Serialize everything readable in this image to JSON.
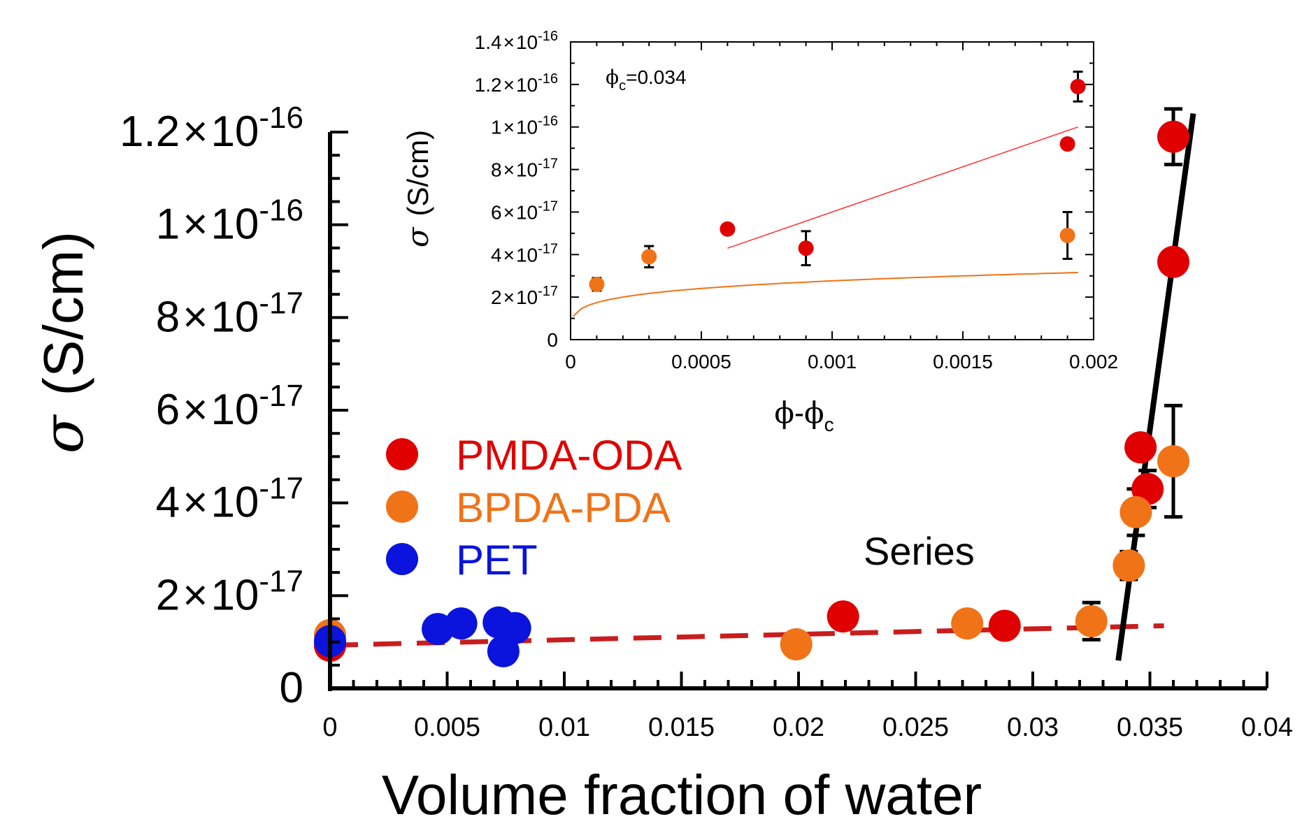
{
  "chart_data": [
    {
      "id": "main",
      "type": "scatter",
      "xlabel": "Volume fraction of water",
      "ylabel_symbol": "σ",
      "ylabel_unit": "(S/cm)",
      "xlim": [
        0,
        0.04
      ],
      "ylim": [
        0,
        1.2e-16
      ],
      "x_ticks": [
        {
          "value": 0,
          "label": "0"
        },
        {
          "value": 0.005,
          "label": "0.005"
        },
        {
          "value": 0.01,
          "label": "0.01"
        },
        {
          "value": 0.015,
          "label": "0.015"
        },
        {
          "value": 0.02,
          "label": "0.02"
        },
        {
          "value": 0.025,
          "label": "0.025"
        },
        {
          "value": 0.03,
          "label": "0.03"
        },
        {
          "value": 0.035,
          "label": "0.035"
        },
        {
          "value": 0.04,
          "label": "0.04"
        }
      ],
      "y_ticks": [
        {
          "value": 0,
          "label": "0"
        },
        {
          "value": 2e-17,
          "mantissa": "2",
          "exponent": "-17"
        },
        {
          "value": 4e-17,
          "mantissa": "4",
          "exponent": "-17"
        },
        {
          "value": 6e-17,
          "mantissa": "6",
          "exponent": "-17"
        },
        {
          "value": 8e-17,
          "mantissa": "8",
          "exponent": "-17"
        },
        {
          "value": 1e-16,
          "mantissa": "1",
          "exponent": "-16"
        },
        {
          "value": 1.2e-16,
          "mantissa": "1.2",
          "exponent": "-16"
        }
      ],
      "times_symbol": "×",
      "base": "10",
      "series": [
        {
          "name": "PMDA-ODA",
          "color": "#e00000",
          "points": [
            {
              "x": 0,
              "y": 9.2e-18
            },
            {
              "x": 0.0219,
              "y": 1.55e-17
            },
            {
              "x": 0.0288,
              "y": 1.35e-17
            },
            {
              "x": 0.0346,
              "y": 5.2e-17
            },
            {
              "x": 0.0349,
              "y": 4.3e-17,
              "err": 4e-18
            },
            {
              "x": 0.036,
              "y": 9.2e-17,
              "err": 2e-18
            },
            {
              "x": 0.036,
              "y": 1.19e-16,
              "err": 6e-18
            }
          ]
        },
        {
          "name": "BPDA-PDA",
          "color": "#f07318",
          "points": [
            {
              "x": 0,
              "y": 1.15e-17
            },
            {
              "x": 0.0199,
              "y": 9.5e-18
            },
            {
              "x": 0.0272,
              "y": 1.4e-17
            },
            {
              "x": 0.0325,
              "y": 1.45e-17,
              "err": 4e-18
            },
            {
              "x": 0.0341,
              "y": 2.65e-17,
              "err": 3e-18
            },
            {
              "x": 0.0344,
              "y": 3.8e-17,
              "err": 5e-18
            },
            {
              "x": 0.036,
              "y": 4.9e-17,
              "err": 1.2e-17
            }
          ]
        },
        {
          "name": "PET",
          "color": "#0a14dc",
          "points": [
            {
              "x": 0,
              "y": 1.02e-17
            },
            {
              "x": 0.0046,
              "y": 1.28e-17
            },
            {
              "x": 0.0056,
              "y": 1.4e-17
            },
            {
              "x": 0.0072,
              "y": 1.42e-17
            },
            {
              "x": 0.0079,
              "y": 1.3e-17
            },
            {
              "x": 0.0074,
              "y": 8e-18
            }
          ]
        }
      ],
      "fit_lines": [
        {
          "name": "dashed-fit",
          "color": "#c81e1e",
          "style": "dashed",
          "x": [
            0,
            0.0356
          ],
          "y": [
            9.3e-18,
            1.35e-17
          ]
        },
        {
          "name": "steep-fit",
          "color": "#000000",
          "style": "solid",
          "x": [
            0.03365,
            0.03685
          ],
          "y": [
            6e-18,
            1.24e-16
          ]
        }
      ],
      "legend_position": "left-middle",
      "annotation": "Series"
    },
    {
      "id": "inset",
      "type": "scatter",
      "xlabel_phi": "ϕ",
      "xlabel_sep": "-",
      "xlabel_sub": "c",
      "ylabel_symbol": "σ",
      "ylabel_unit": "(S/cm)",
      "xlim": [
        0,
        0.002
      ],
      "ylim": [
        0,
        1.4e-16
      ],
      "x_ticks": [
        {
          "value": 0,
          "label": "0"
        },
        {
          "value": 0.0005,
          "label": "0.0005"
        },
        {
          "value": 0.001,
          "label": "0.001"
        },
        {
          "value": 0.0015,
          "label": "0.0015"
        },
        {
          "value": 0.002,
          "label": "0.002"
        }
      ],
      "y_ticks": [
        {
          "value": 0,
          "label": "0"
        },
        {
          "value": 2e-17,
          "mantissa": "2",
          "exponent": "-17"
        },
        {
          "value": 4e-17,
          "mantissa": "4",
          "exponent": "-17"
        },
        {
          "value": 6e-17,
          "mantissa": "6",
          "exponent": "-17"
        },
        {
          "value": 8e-17,
          "mantissa": "8",
          "exponent": "-17"
        },
        {
          "value": 1e-16,
          "mantissa": "1",
          "exponent": "-16"
        },
        {
          "value": 1.2e-16,
          "mantissa": "1.2",
          "exponent": "-16"
        },
        {
          "value": 1.4e-16,
          "mantissa": "1.4",
          "exponent": "-16"
        }
      ],
      "annotation_phi": "ϕ",
      "annotation_sub": "c",
      "annotation_value": "=0.034",
      "series": [
        {
          "name": "PMDA-ODA",
          "color": "#e00000",
          "points": [
            {
              "x": 0.0006,
              "y": 5.2e-17
            },
            {
              "x": 0.0009,
              "y": 4.3e-17,
              "err": 8e-18
            },
            {
              "x": 0.0019,
              "y": 9.2e-17
            },
            {
              "x": 0.00194,
              "y": 1.19e-16,
              "err": 7e-18
            }
          ]
        },
        {
          "name": "BPDA-PDA",
          "color": "#f07318",
          "points": [
            {
              "x": 0.0001,
              "y": 2.6e-17,
              "err": 3e-18
            },
            {
              "x": 0.0003,
              "y": 3.9e-17,
              "err": 5e-18
            },
            {
              "x": 0.0019,
              "y": 4.9e-17,
              "err": 1.1e-17
            }
          ]
        }
      ],
      "fit_lines": [
        {
          "name": "red-fit",
          "color": "#ff3030",
          "style": "solid",
          "x": [
            0.0006,
            0.00194
          ],
          "y": [
            4.3e-17,
            1e-16
          ]
        },
        {
          "name": "orange-fit",
          "color": "#f07318",
          "style": "solid",
          "curve": "power",
          "x0": 1e-05,
          "x1": 0.00194,
          "a": 1.1e-16,
          "b": 0.2
        }
      ]
    }
  ]
}
